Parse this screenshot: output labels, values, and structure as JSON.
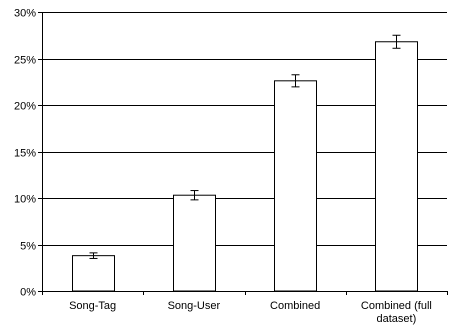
{
  "chart_data": {
    "type": "bar",
    "categories": [
      "Song-Tag",
      "Song-User",
      "Combined",
      "Combined (full dataset)"
    ],
    "category_label_lines": [
      [
        "Song-Tag"
      ],
      [
        "Song-User"
      ],
      [
        "Combined"
      ],
      [
        "Combined (full",
        "dataset)"
      ]
    ],
    "values": [
      3.8,
      10.3,
      22.6,
      26.8
    ],
    "error": [
      0.3,
      0.5,
      0.65,
      0.7
    ],
    "y_tick_values": [
      0,
      5,
      10,
      15,
      20,
      25,
      30
    ],
    "y_tick_labels": [
      "0%",
      "5%",
      "10%",
      "15%",
      "20%",
      "25%",
      "30%"
    ],
    "ylim": [
      0,
      30
    ],
    "title": "",
    "xlabel": "",
    "ylabel": "",
    "grid": true,
    "legend": "none",
    "colors": {
      "bar_fill": "#ffffff",
      "bar_stroke": "#000000",
      "grid": "#000000"
    }
  }
}
